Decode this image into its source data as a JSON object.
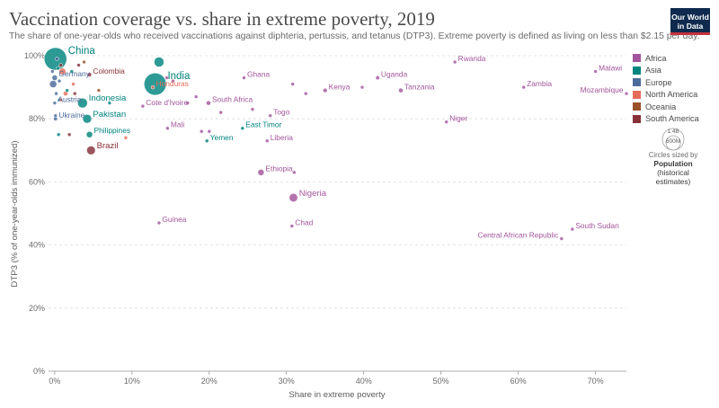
{
  "header": {
    "title": "Vaccination coverage vs. share in extreme poverty, 2019",
    "subtitle": "The share of one-year-olds who received vaccinations against diphteria, pertussis, and tetanus (DTP3). Extreme poverty is defined as living on less than $2.15 per day.",
    "logo_line1": "Our World",
    "logo_line2": "in Data"
  },
  "legend": {
    "items": [
      {
        "label": "Africa",
        "color": "#a2559c"
      },
      {
        "label": "Asia",
        "color": "#00847e"
      },
      {
        "label": "Europe",
        "color": "#4c6a9c"
      },
      {
        "label": "North America",
        "color": "#e56e5a"
      },
      {
        "label": "Oceania",
        "color": "#9a5129"
      },
      {
        "label": "South America",
        "color": "#883039"
      }
    ],
    "size_caption": "Circles sized by",
    "size_title": "Population",
    "size_note_1": "(historical",
    "size_note_2": "estimates)",
    "size_large": "1.4B",
    "size_small": "600M"
  },
  "chart_data": {
    "type": "scatter",
    "title": "Vaccination coverage vs. share in extreme poverty, 2019",
    "xlabel": "Share in extreme poverty",
    "ylabel": "DTP3 (% of one-year-olds immunized)",
    "xlim": [
      -0.8,
      74
    ],
    "ylim": [
      0,
      100
    ],
    "x_ticks": [
      0,
      10,
      20,
      30,
      40,
      50,
      60,
      70
    ],
    "x_tick_labels": [
      "0%",
      "10%",
      "20%",
      "30%",
      "40%",
      "50%",
      "60%",
      "70%"
    ],
    "y_ticks": [
      0,
      20,
      40,
      60,
      80,
      100
    ],
    "y_tick_labels": [
      "0%",
      "20%",
      "40%",
      "60%",
      "80%",
      "100%"
    ],
    "grid": "horizontal dashed",
    "legend_position": "right",
    "points": [
      {
        "label": "China",
        "x": 0.1,
        "y": 99,
        "pop": 1420,
        "group": "Asia"
      },
      {
        "label": "India",
        "x": 13,
        "y": 91,
        "pop": 1380,
        "group": "Asia"
      },
      {
        "label": "",
        "x": 13.5,
        "y": 98,
        "pop": 270,
        "group": "Asia"
      },
      {
        "label": "Indonesia",
        "x": 3.6,
        "y": 85,
        "pop": 270,
        "group": "Asia"
      },
      {
        "label": "Pakistan",
        "x": 4.2,
        "y": 80,
        "pop": 220,
        "group": "Asia"
      },
      {
        "label": "Philippines",
        "x": 4.5,
        "y": 75,
        "pop": 110,
        "group": "Asia"
      },
      {
        "label": "Brazil",
        "x": 4.7,
        "y": 70,
        "pop": 210,
        "group": "South America"
      },
      {
        "label": "Colombia",
        "x": 4.5,
        "y": 94,
        "pop": 50,
        "group": "South America"
      },
      {
        "label": "Germany",
        "x": 0,
        "y": 93,
        "pop": 83,
        "group": "Europe"
      },
      {
        "label": "Austria",
        "x": 0,
        "y": 85,
        "pop": 9,
        "group": "Europe"
      },
      {
        "label": "Ukraine",
        "x": 0.1,
        "y": 80,
        "pop": 44,
        "group": "Europe"
      },
      {
        "label": "",
        "x": -0.2,
        "y": 91,
        "pop": 145,
        "group": "Europe"
      },
      {
        "label": "",
        "x": 1,
        "y": 95,
        "pop": 130,
        "group": "North America"
      },
      {
        "label": "",
        "x": 1.4,
        "y": 88,
        "pop": 60,
        "group": "North America"
      },
      {
        "label": "Honduras",
        "x": 12.7,
        "y": 90,
        "pop": 10,
        "group": "North America"
      },
      {
        "label": "Cote d'Ivoire",
        "x": 11.4,
        "y": 84,
        "pop": 26,
        "group": "Africa"
      },
      {
        "label": "South Africa",
        "x": 19.9,
        "y": 85,
        "pop": 58,
        "group": "Africa"
      },
      {
        "label": "Ghana",
        "x": 24.5,
        "y": 93,
        "pop": 31,
        "group": "Africa"
      },
      {
        "label": "Kenya",
        "x": 35,
        "y": 89,
        "pop": 52,
        "group": "Africa"
      },
      {
        "label": "Uganda",
        "x": 41.8,
        "y": 93,
        "pop": 44,
        "group": "Africa"
      },
      {
        "label": "Tanzania",
        "x": 44.8,
        "y": 89,
        "pop": 58,
        "group": "Africa"
      },
      {
        "label": "Rwanda",
        "x": 51.8,
        "y": 98,
        "pop": 12,
        "group": "Africa"
      },
      {
        "label": "Zambia",
        "x": 60.7,
        "y": 90,
        "pop": 18,
        "group": "Africa"
      },
      {
        "label": "Malawi",
        "x": 70,
        "y": 95,
        "pop": 18,
        "group": "Africa"
      },
      {
        "label": "Mozambique",
        "x": 74,
        "y": 88,
        "pop": 30,
        "group": "Africa"
      },
      {
        "label": "Niger",
        "x": 50.7,
        "y": 79,
        "pop": 23,
        "group": "Africa"
      },
      {
        "label": "Togo",
        "x": 27.9,
        "y": 81,
        "pop": 8,
        "group": "Africa"
      },
      {
        "label": "Mali",
        "x": 14.6,
        "y": 77,
        "pop": 20,
        "group": "Africa"
      },
      {
        "label": "East Timor",
        "x": 24.3,
        "y": 77,
        "pop": 1.3,
        "group": "Asia"
      },
      {
        "label": "Liberia",
        "x": 27.5,
        "y": 73,
        "pop": 5,
        "group": "Africa"
      },
      {
        "label": "Yemen",
        "x": 19.7,
        "y": 73,
        "pop": 29,
        "group": "Asia"
      },
      {
        "label": "Ethiopia",
        "x": 26.7,
        "y": 63,
        "pop": 112,
        "group": "Africa"
      },
      {
        "label": "Nigeria",
        "x": 30.9,
        "y": 55,
        "pop": 200,
        "group": "Africa"
      },
      {
        "label": "Guinea",
        "x": 13.5,
        "y": 47,
        "pop": 13,
        "group": "Africa"
      },
      {
        "label": "Chad",
        "x": 30.7,
        "y": 46,
        "pop": 16,
        "group": "Africa"
      },
      {
        "label": "South Sudan",
        "x": 67,
        "y": 45,
        "pop": 11,
        "group": "Africa"
      },
      {
        "label": "Central African Republic",
        "x": 65.6,
        "y": 42,
        "pop": 4.7,
        "group": "Africa"
      },
      {
        "label": "",
        "x": 15.3,
        "y": 92,
        "pop": 3,
        "group": "Africa"
      },
      {
        "label": "",
        "x": 17.2,
        "y": 85,
        "pop": 3,
        "group": "Africa"
      },
      {
        "label": "",
        "x": 18.3,
        "y": 87,
        "pop": 4,
        "group": "Africa"
      },
      {
        "label": "",
        "x": 21.5,
        "y": 82,
        "pop": 3,
        "group": "Africa"
      },
      {
        "label": "",
        "x": 25.6,
        "y": 83,
        "pop": 3,
        "group": "Africa"
      },
      {
        "label": "",
        "x": 30.8,
        "y": 91,
        "pop": 3,
        "group": "Africa"
      },
      {
        "label": "",
        "x": 32.5,
        "y": 88,
        "pop": 3,
        "group": "Africa"
      },
      {
        "label": "",
        "x": 39.8,
        "y": 90,
        "pop": 3,
        "group": "Africa"
      },
      {
        "label": "",
        "x": 31,
        "y": 63,
        "pop": 3,
        "group": "Africa"
      },
      {
        "label": "",
        "x": 19,
        "y": 76,
        "pop": 3,
        "group": "Africa"
      },
      {
        "label": "",
        "x": 20,
        "y": 76,
        "pop": 3,
        "group": "Africa"
      },
      {
        "label": "",
        "x": 14.5,
        "y": 93,
        "pop": 3,
        "group": "Africa"
      },
      {
        "label": "",
        "x": 0.5,
        "y": 75,
        "pop": 12,
        "group": "Asia"
      },
      {
        "label": "",
        "x": 0.4,
        "y": 96,
        "pop": 30,
        "group": "Asia"
      },
      {
        "label": "",
        "x": 1.6,
        "y": 89,
        "pop": 30,
        "group": "Asia"
      },
      {
        "label": "",
        "x": 2.2,
        "y": 95,
        "pop": 10,
        "group": "Asia"
      },
      {
        "label": "",
        "x": 0.6,
        "y": 86,
        "pop": 10,
        "group": "Asia"
      },
      {
        "label": "",
        "x": 7.1,
        "y": 85,
        "pop": 10,
        "group": "Asia"
      },
      {
        "label": "",
        "x": 1.9,
        "y": 75,
        "pop": 3,
        "group": "South America"
      },
      {
        "label": "",
        "x": 3.1,
        "y": 97,
        "pop": 3,
        "group": "South America"
      },
      {
        "label": "",
        "x": 2.6,
        "y": 88,
        "pop": 18,
        "group": "South America"
      },
      {
        "label": "",
        "x": 0.8,
        "y": 97,
        "pop": 5,
        "group": "South America"
      },
      {
        "label": "",
        "x": 9.2,
        "y": 74,
        "pop": 3,
        "group": "North America"
      },
      {
        "label": "",
        "x": 0.8,
        "y": 86,
        "pop": 3,
        "group": "North America"
      },
      {
        "label": "",
        "x": 2.4,
        "y": 91,
        "pop": 3,
        "group": "North America"
      },
      {
        "label": "",
        "x": 0.2,
        "y": 88,
        "pop": 3,
        "group": "Europe"
      },
      {
        "label": "",
        "x": -0.3,
        "y": 95,
        "pop": 10,
        "group": "Europe"
      },
      {
        "label": "",
        "x": 0.6,
        "y": 92,
        "pop": 10,
        "group": "Europe"
      },
      {
        "label": "",
        "x": 0.1,
        "y": 81,
        "pop": 3,
        "group": "Europe"
      },
      {
        "label": "",
        "x": 0.3,
        "y": 99,
        "pop": 3,
        "group": "Europe"
      },
      {
        "label": "",
        "x": 3.8,
        "y": 98,
        "pop": 3,
        "group": "Oceania"
      },
      {
        "label": "",
        "x": 5.7,
        "y": 89,
        "pop": 3,
        "group": "Oceania"
      }
    ]
  }
}
